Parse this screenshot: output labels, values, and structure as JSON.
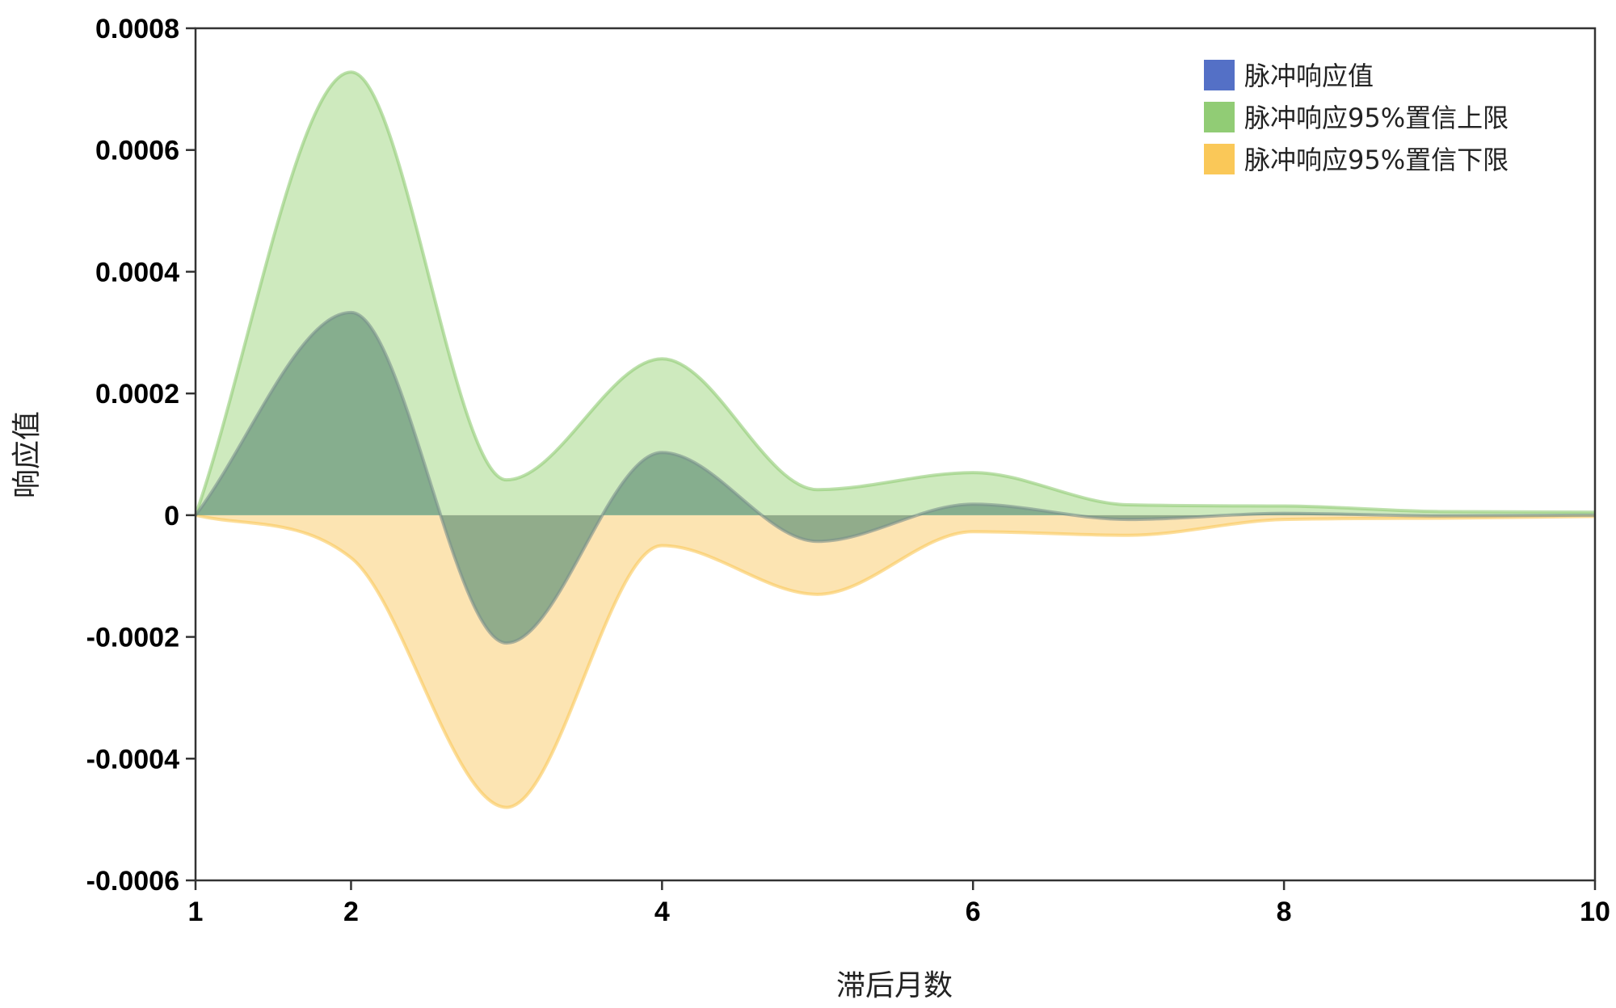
{
  "chart_data": {
    "type": "area",
    "x": [
      1,
      2,
      3,
      4,
      5,
      6,
      7,
      8,
      9,
      10
    ],
    "series": [
      {
        "name": "脉冲响应值",
        "color": "#5470c6",
        "fill": "#6e9a7e",
        "values": [
          0,
          0.000333,
          -0.00021,
          0.000103,
          -4.3e-05,
          1.8e-05,
          -7e-06,
          3e-06,
          -1e-06,
          0
        ]
      },
      {
        "name": "脉冲响应95%置信上限",
        "color": "#91cc75",
        "fill": "#c5e6b3",
        "values": [
          0,
          0.000728,
          5.8e-05,
          0.000257,
          4.2e-05,
          7e-05,
          1.7e-05,
          1.5e-05,
          6e-06,
          5e-06
        ]
      },
      {
        "name": "脉冲响应95%置信下限",
        "color": "#fac858",
        "fill": "#fbdfa4",
        "values": [
          0,
          -7e-05,
          -0.00048,
          -5e-05,
          -0.00013,
          -2.7e-05,
          -3.3e-05,
          -7e-06,
          -5e-06,
          -2e-06
        ]
      }
    ],
    "xlabel": "滞后月数",
    "ylabel": "响应值",
    "xlim": [
      1,
      10
    ],
    "ylim": [
      -0.0006,
      0.0008
    ],
    "x_ticks": [
      {
        "value": 1,
        "label": "1"
      },
      {
        "value": 2,
        "label": "2"
      },
      {
        "value": 4,
        "label": "4"
      },
      {
        "value": 6,
        "label": "6"
      },
      {
        "value": 8,
        "label": "8"
      },
      {
        "value": 10,
        "label": "10"
      }
    ],
    "y_ticks": [
      {
        "value": 0.0008,
        "label": "0.0008"
      },
      {
        "value": 0.0006,
        "label": "0.0006"
      },
      {
        "value": 0.0004,
        "label": "0.0004"
      },
      {
        "value": 0.0002,
        "label": "0.0002"
      },
      {
        "value": 0,
        "label": "0"
      },
      {
        "value": -0.0002,
        "label": "-0.0002"
      },
      {
        "value": -0.0004,
        "label": "-0.0004"
      },
      {
        "value": -0.0006,
        "label": "-0.0006"
      }
    ],
    "grid": false,
    "legend_position": "top-right"
  }
}
